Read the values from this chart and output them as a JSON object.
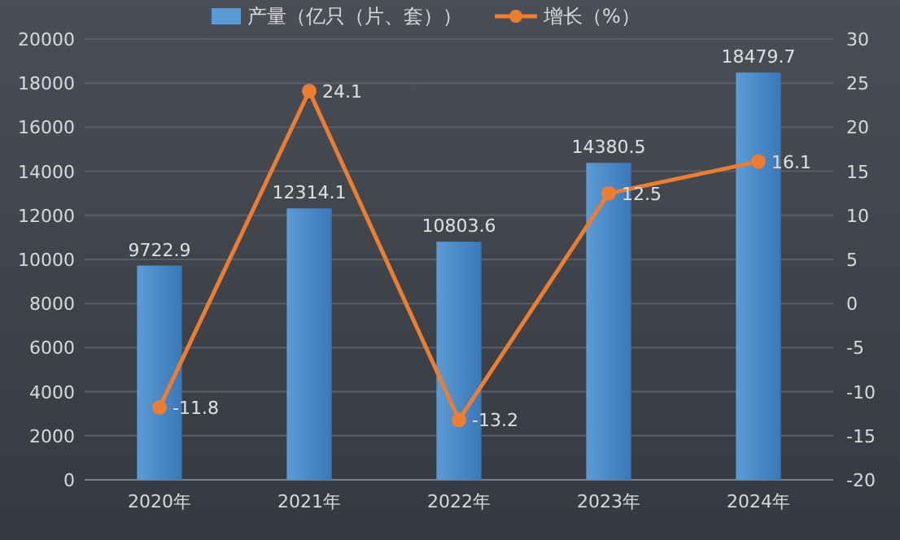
{
  "chart_data": {
    "type": "bar",
    "categories": [
      "2020年",
      "2021年",
      "2022年",
      "2023年",
      "2024年"
    ],
    "series": [
      {
        "name": "产量（亿只（片、套））",
        "color": "#5b9bd5",
        "values": [
          9722.9,
          12314.1,
          10803.6,
          14380.5,
          18479.7
        ]
      },
      {
        "name": "增长（%）",
        "type": "line",
        "axis": "y2",
        "color": "#ed7d31",
        "values": [
          -11.8,
          24.1,
          -13.2,
          12.5,
          16.1
        ]
      }
    ],
    "ylim": [
      0,
      20000
    ],
    "yticks": [
      0,
      2000,
      4000,
      6000,
      8000,
      10000,
      12000,
      14000,
      16000,
      18000,
      20000
    ],
    "y2lim": [
      -20,
      30
    ],
    "y2ticks": [
      -20,
      -15,
      -10,
      -5,
      0,
      5,
      10,
      15,
      20,
      25,
      30
    ],
    "data_labels": true,
    "grid": "y",
    "legend": "top",
    "marker": "circle"
  }
}
